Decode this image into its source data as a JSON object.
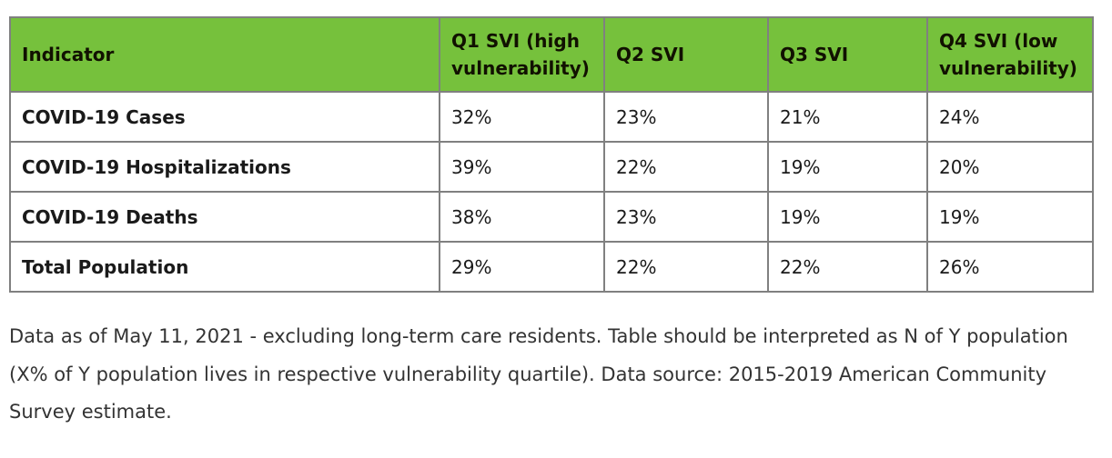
{
  "colors": {
    "header_bg": "#76c13c",
    "border_color": "#808080",
    "header_text": "#111100",
    "body_text": "#1a1a1a",
    "note_text": "#333333"
  },
  "chart_data": {
    "type": "table",
    "columns": [
      "Indicator",
      "Q1 SVI (high vulnerability)",
      "Q2 SVI",
      "Q3 SVI",
      "Q4 SVI (low vulnerability)"
    ],
    "rows": [
      {
        "indicator": "COVID-19 Cases",
        "values": [
          "32%",
          "23%",
          "21%",
          "24%"
        ]
      },
      {
        "indicator": "COVID-19 Hospitalizations",
        "values": [
          "39%",
          "22%",
          "19%",
          "20%"
        ]
      },
      {
        "indicator": "COVID-19 Deaths",
        "values": [
          "38%",
          "23%",
          "19%",
          "19%"
        ]
      },
      {
        "indicator": "Total Population",
        "values": [
          "29%",
          "22%",
          "22%",
          "26%"
        ]
      }
    ],
    "note": "Data as of May 11, 2021 - excluding long-term care residents. Table should be interpreted as N of Y population (X% of Y population lives in respective vulnerability quartile). Data source: 2015-2019 American Community Survey estimate."
  }
}
